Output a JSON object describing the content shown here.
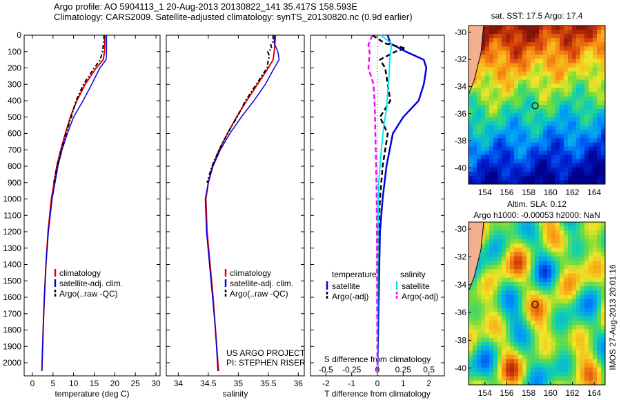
{
  "header": {
    "line1": "Argo profile: AO 5904113_1 20-Aug-2013 20130822_141 35.417S 158.593E",
    "line2": "Climatology: CARS2009. Satellite-adjusted climatology: synTS_20130820.nc (0.9d earlier)"
  },
  "colors": {
    "climatology": "#e00000",
    "satellite": "#0000dd",
    "argo": "#000000",
    "salinity_satellite": "#00e8e8",
    "salinity_argo": "#ff00ff"
  },
  "chart_data": [
    {
      "type": "line",
      "name": "temperature-profile",
      "xlabel": "temperature (deg C)",
      "ylabel": "",
      "xlim": [
        -2,
        31
      ],
      "ylim": [
        2080,
        0
      ],
      "xticks": [
        0,
        5,
        10,
        15,
        20,
        25,
        30
      ],
      "yticks": [
        0,
        100,
        200,
        300,
        400,
        500,
        600,
        700,
        800,
        900,
        1000,
        1100,
        1200,
        1300,
        1400,
        1500,
        1600,
        1700,
        1800,
        1900,
        2000
      ],
      "legend": [
        "climatology",
        "satellite-adj. clim.",
        "Argo(..raw -QC)"
      ],
      "series": [
        {
          "name": "climatology",
          "depth": [
            0,
            50,
            100,
            150,
            200,
            300,
            400,
            500,
            600,
            700,
            800,
            1000,
            1200,
            1400,
            1600,
            1800,
            2050
          ],
          "values": [
            17.6,
            17.6,
            17.5,
            17.2,
            15.5,
            12.8,
            10.8,
            9.2,
            8.0,
            6.9,
            5.9,
            4.6,
            3.8,
            3.3,
            2.9,
            2.6,
            2.3
          ]
        },
        {
          "name": "satellite-adj. clim.",
          "depth": [
            0,
            50,
            100,
            150,
            200,
            300,
            400,
            500,
            600,
            700,
            800,
            1000,
            1200,
            1400,
            1600,
            1800,
            2050
          ],
          "values": [
            18.0,
            18.0,
            18.0,
            17.9,
            16.4,
            14.4,
            12.3,
            10.0,
            8.5,
            7.2,
            6.2,
            4.8,
            3.9,
            3.3,
            2.9,
            2.6,
            2.3
          ]
        },
        {
          "name": "Argo(..raw -QC)",
          "depth": [
            0,
            50,
            100,
            150,
            200,
            300,
            400,
            500,
            600,
            700,
            800,
            900
          ],
          "values": [
            17.4,
            17.3,
            17.0,
            16.5,
            15.0,
            12.4,
            10.6,
            9.4,
            8.2,
            7.0,
            6.0,
            5.2
          ]
        }
      ]
    },
    {
      "type": "line",
      "name": "salinity-profile",
      "xlabel": "salinity",
      "ylabel": "",
      "xlim": [
        33.8,
        36.1
      ],
      "ylim": [
        2080,
        0
      ],
      "xticks": [
        34,
        34.5,
        35,
        35.5,
        36
      ],
      "legend": [
        "climatology",
        "satellite-adj. clim.",
        "Argo(..raw -QC)"
      ],
      "series": [
        {
          "name": "climatology",
          "depth": [
            0,
            50,
            100,
            150,
            200,
            300,
            400,
            500,
            600,
            700,
            800,
            900,
            1000,
            1200,
            1400,
            1600,
            1800,
            2050
          ],
          "values": [
            35.62,
            35.61,
            35.6,
            35.58,
            35.5,
            35.32,
            35.14,
            34.97,
            34.82,
            34.68,
            34.57,
            34.5,
            34.46,
            34.48,
            34.53,
            34.58,
            34.62,
            34.67
          ]
        },
        {
          "name": "satellite-adj. clim.",
          "depth": [
            0,
            50,
            100,
            150,
            200,
            300,
            400,
            500,
            600,
            700,
            800,
            900,
            1000,
            1200,
            1400,
            1600,
            1800,
            2050
          ],
          "values": [
            35.6,
            35.6,
            35.66,
            35.68,
            35.6,
            35.45,
            35.26,
            35.05,
            34.86,
            34.7,
            34.58,
            34.5,
            34.45,
            34.47,
            34.52,
            34.57,
            34.62,
            34.66
          ]
        },
        {
          "name": "Argo(..raw -QC)",
          "depth": [
            0,
            40,
            60,
            80,
            100,
            130,
            150,
            200,
            300,
            400,
            500,
            600,
            700,
            800,
            900
          ],
          "values": [
            35.58,
            35.58,
            35.54,
            35.56,
            35.49,
            35.52,
            35.5,
            35.48,
            35.3,
            35.12,
            34.98,
            34.82,
            34.68,
            34.56,
            34.48
          ]
        }
      ]
    },
    {
      "type": "line",
      "name": "difference-profile",
      "xlabel": "T difference from climatology",
      "xlabel_top": "S difference from climatology",
      "top_ticks": [
        "-0.5",
        "-0.25",
        "0",
        "0.25",
        "0.5"
      ],
      "ylabel": "",
      "xlim": [
        -2.6,
        2.6
      ],
      "ylim": [
        2080,
        0
      ],
      "xticks": [
        -2,
        -1,
        0,
        1,
        2
      ],
      "legend": {
        "temperature_title": "temperature",
        "salinity_title": "salinity",
        "items": [
          "satellite",
          "Argo(-adj)",
          "satellite",
          "Argo(-adj)"
        ]
      },
      "series": [
        {
          "name": "temperature satellite",
          "depth": [
            0,
            50,
            100,
            150,
            200,
            300,
            400,
            500,
            600,
            800,
            1000,
            1200,
            1600,
            2050
          ],
          "values": [
            0.4,
            0.5,
            1.1,
            1.8,
            1.9,
            1.8,
            1.6,
            1.0,
            0.6,
            0.35,
            0.2,
            0.1,
            0.05,
            0.0
          ]
        },
        {
          "name": "temperature Argo(-adj)",
          "depth": [
            0,
            50,
            80,
            100,
            150,
            200,
            300,
            400,
            450,
            500,
            600,
            800,
            1000,
            1200,
            1600
          ],
          "values": [
            -0.2,
            0.3,
            1.1,
            0.7,
            0.1,
            0.3,
            0.4,
            0.5,
            0.3,
            0.1,
            0.4,
            0.2,
            0.1,
            0.05,
            0.02
          ]
        },
        {
          "name": "salinity satellite",
          "depth": [
            0,
            50,
            150,
            250,
            350,
            450,
            550,
            700,
            900,
            1200,
            1600,
            2050
          ],
          "values": [
            0.12,
            0.55,
            0.48,
            0.45,
            0.4,
            0.35,
            0.25,
            0.15,
            0.05,
            0.02,
            0.01,
            0.0
          ]
        },
        {
          "name": "salinity Argo(-adj)",
          "depth": [
            0,
            60,
            110,
            200,
            300,
            450,
            600,
            800,
            1000,
            1300,
            1700,
            2050
          ],
          "values": [
            -0.2,
            -0.35,
            -0.3,
            -0.35,
            -0.15,
            -0.1,
            -0.08,
            -0.05,
            -0.03,
            -0.02,
            -0.01,
            0.0
          ]
        }
      ]
    },
    {
      "type": "heatmap",
      "name": "sst-map",
      "title": "sat. SST: 17.5  Argo: 17.4",
      "xticks": [
        "154",
        "156",
        "158",
        "160",
        "162",
        "164"
      ],
      "yticks": [
        "-30",
        "-32",
        "-34",
        "-36",
        "-38",
        "-40"
      ],
      "xlim": [
        152.5,
        165
      ],
      "ylim": [
        -41.2,
        -29.5
      ],
      "marker": {
        "lon": 158.593,
        "lat": -35.417
      }
    },
    {
      "type": "heatmap",
      "name": "sla-map",
      "title": "Altim. SLA: 0.12",
      "subtitle": "Argo h1000: -0.00053 h2000: NaN",
      "xticks": [
        "154",
        "156",
        "158",
        "160",
        "162",
        "164"
      ],
      "yticks": [
        "-30",
        "-32",
        "-34",
        "-36",
        "-38",
        "-40"
      ],
      "xlim": [
        152.5,
        165
      ],
      "ylim": [
        -41.2,
        -29.5
      ],
      "marker": {
        "lon": 158.593,
        "lat": -35.417
      }
    }
  ],
  "labels": {
    "project": "US ARGO PROJECT",
    "pi": "PI: STEPHEN RISER",
    "footer": "IMOS 27-Aug-2013 20:01:16"
  }
}
